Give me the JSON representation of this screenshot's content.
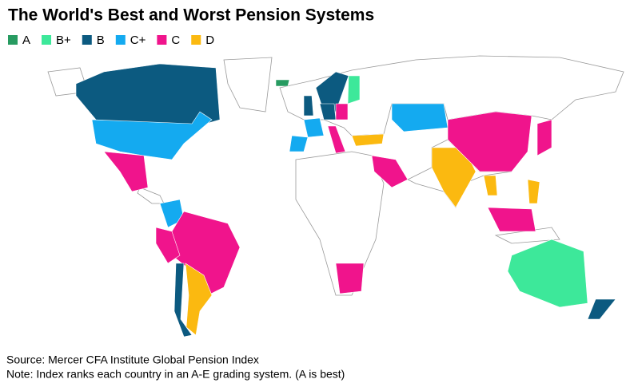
{
  "title": "The World's Best and Worst Pension Systems",
  "legend": [
    {
      "label": "A",
      "color": "#279b61"
    },
    {
      "label": "B+",
      "color": "#3de89a"
    },
    {
      "label": "B",
      "color": "#0c5a80"
    },
    {
      "label": "C+",
      "color": "#14aaf0"
    },
    {
      "label": "C",
      "color": "#f0148c"
    },
    {
      "label": "D",
      "color": "#fbb910"
    }
  ],
  "source": "Source: Mercer CFA Institute Global Pension Index",
  "note": "Note: Index ranks each country in an A-E grading system. (A is best)"
}
